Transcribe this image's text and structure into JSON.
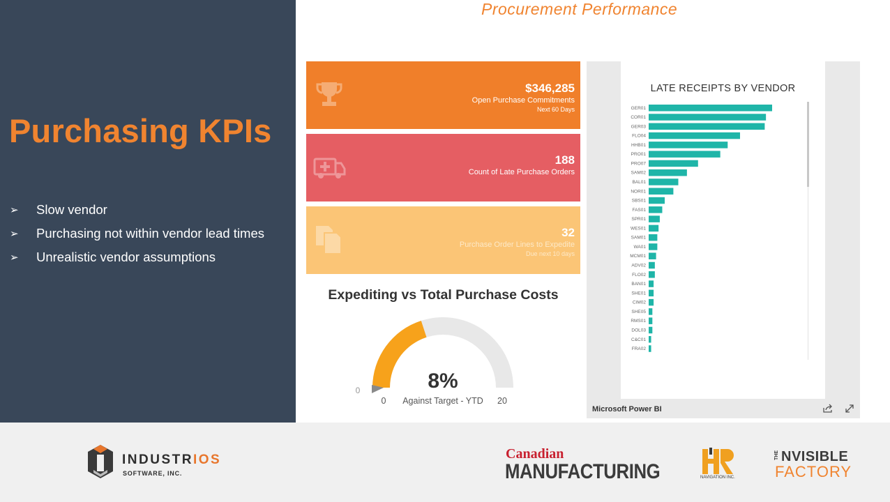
{
  "left": {
    "title": "Purchasing KPIs",
    "bullets": [
      "Slow vendor",
      "Purchasing not within vendor lead times",
      "Unrealistic vendor assumptions"
    ],
    "bullet_glyph": "➢"
  },
  "right": {
    "title": "Procurement Performance",
    "kpis": [
      {
        "value": "$346,285",
        "label": "Open Purchase Commitments",
        "sub": "Next 60 Days",
        "icon": "trophy-icon",
        "color": "#f07f2a"
      },
      {
        "value": "188",
        "label": "Count of Late Purchase Orders",
        "icon": "ambulance-icon",
        "color": "#e55e63"
      },
      {
        "value": "32",
        "label": "Purchase Order Lines to Expedite",
        "sub": "Due next 10 days",
        "icon": "documents-icon",
        "color": "#fbc576"
      }
    ],
    "gauge": {
      "title": "Expediting vs Total Purchase Costs",
      "value_label": "8%",
      "caption": "Against Target - YTD",
      "min_label": "0",
      "max_label": "20",
      "target_label": "0",
      "value": 8,
      "min": 0,
      "max": 20,
      "fill_color": "#f7a21b",
      "track_color": "#e8e8e8"
    }
  },
  "powerbi": {
    "footer": "Microsoft Power BI",
    "share_icon": "share-icon",
    "expand_icon": "expand-icon"
  },
  "chart_data": {
    "type": "bar",
    "orientation": "horizontal",
    "title": "LATE RECEIPTS BY VENDOR",
    "color": "#1fb5a8",
    "categories": [
      "GER01",
      "COR01",
      "GER03",
      "FLO04",
      "HHB01",
      "PRO01",
      "PRO07",
      "SAM02",
      "BAL01",
      "NOR01",
      "SBS01",
      "FAS01",
      "SPR01",
      "WES01",
      "SAM01",
      "WA01",
      "MCM01",
      "ADV02",
      "FLO02",
      "BAN01",
      "SHE01",
      "CIM02",
      "SHE05",
      "RMS01",
      "DOL03",
      "C&C01",
      "FRA02"
    ],
    "values": [
      100,
      95,
      94,
      74,
      64,
      58,
      40,
      31,
      24,
      20,
      13,
      11,
      9,
      8,
      7,
      7,
      6,
      5,
      5,
      4,
      4,
      4,
      3,
      3,
      3,
      2,
      2
    ],
    "xlabel": "",
    "ylabel": "",
    "xlim": [
      0,
      100
    ],
    "grid": false,
    "legend": "none"
  },
  "footer": {
    "industrios_name_a": "INDUSTR",
    "industrios_name_b": "IOS",
    "industrios_sub": "SOFTWARE, INC.",
    "cm_top": "Canadian",
    "cm_bottom": "MANUFACTURING",
    "hr_sub": "NAVIGATION INC.",
    "if_the": "THE",
    "if_top": "NVISIBLE",
    "if_bottom": "FACTORY"
  }
}
